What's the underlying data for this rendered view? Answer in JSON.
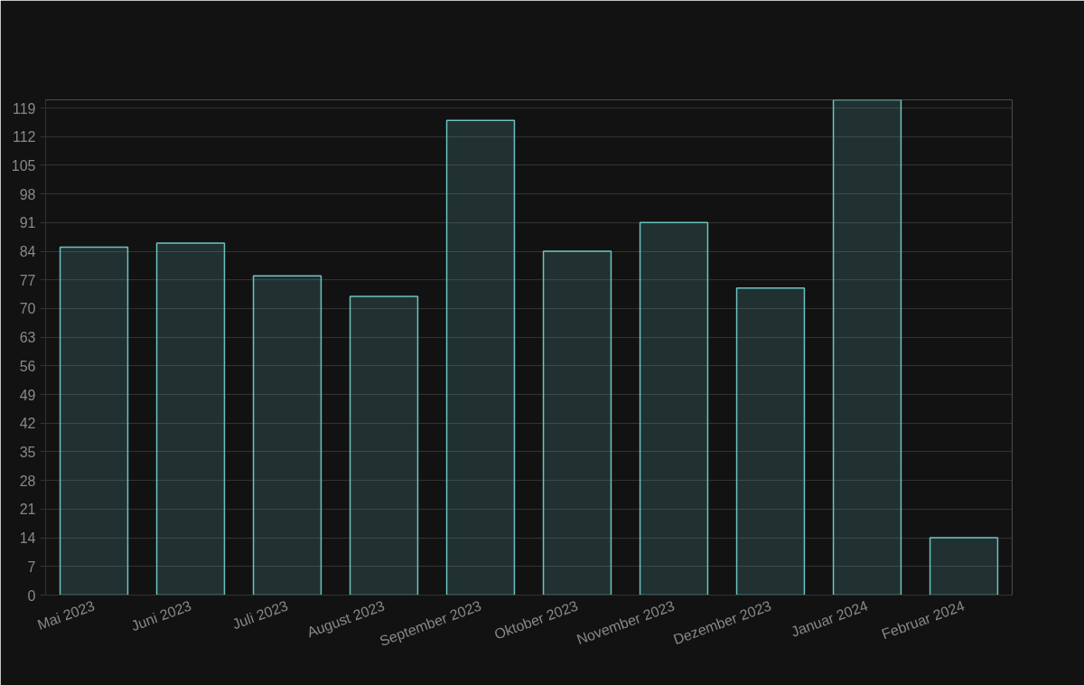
{
  "chart_data": {
    "type": "bar",
    "categories": [
      "Mai 2023",
      "Juni 2023",
      "Juli 2023",
      "August 2023",
      "September 2023",
      "Oktober 2023",
      "November 2023",
      "Dezember 2023",
      "Januar 2024",
      "Februar 2024"
    ],
    "values": [
      85,
      86,
      78,
      73,
      116,
      84,
      91,
      75,
      121,
      14
    ],
    "color": "#6cc3c0",
    "ylim": [
      0,
      121
    ],
    "yticks": [
      0,
      7,
      14,
      21,
      28,
      35,
      42,
      49,
      56,
      63,
      70,
      77,
      84,
      91,
      98,
      105,
      112,
      119
    ],
    "grid": "y"
  }
}
